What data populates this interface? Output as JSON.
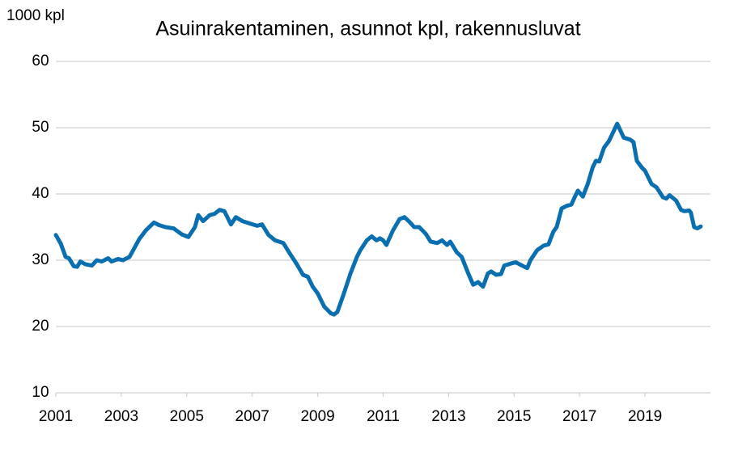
{
  "chart_data": {
    "type": "line",
    "title": "Asuinrakentaminen, asunnot kpl, rakennusluvat",
    "y_label": "1000 kpl",
    "xlim": [
      2001,
      2021
    ],
    "xticks": [
      2001,
      2003,
      2005,
      2007,
      2009,
      2011,
      2013,
      2015,
      2017,
      2019
    ],
    "ylim": [
      10,
      60
    ],
    "yticks": [
      10,
      20,
      30,
      40,
      50,
      60
    ],
    "grid": true,
    "series": [
      {
        "name": "Rakennusluvat",
        "color": "#0a6fb0",
        "x": [
          2001.0,
          2001.15,
          2001.3,
          2001.4,
          2001.55,
          2001.65,
          2001.75,
          2001.9,
          2002.1,
          2002.25,
          2002.4,
          2002.6,
          2002.7,
          2002.9,
          2003.05,
          2003.25,
          2003.55,
          2003.75,
          2004.0,
          2004.15,
          2004.35,
          2004.6,
          2004.85,
          2005.05,
          2005.25,
          2005.35,
          2005.5,
          2005.7,
          2005.85,
          2006.0,
          2006.15,
          2006.35,
          2006.5,
          2006.7,
          2006.95,
          2007.15,
          2007.3,
          2007.5,
          2007.7,
          2007.95,
          2008.15,
          2008.35,
          2008.55,
          2008.7,
          2008.85,
          2009.0,
          2009.2,
          2009.4,
          2009.5,
          2009.6,
          2009.8,
          2010.0,
          2010.2,
          2010.3,
          2010.5,
          2010.65,
          2010.8,
          2010.9,
          2011.0,
          2011.1,
          2011.3,
          2011.5,
          2011.65,
          2011.8,
          2011.95,
          2012.1,
          2012.3,
          2012.45,
          2012.65,
          2012.8,
          2012.95,
          2013.05,
          2013.25,
          2013.4,
          2013.6,
          2013.75,
          2013.9,
          2014.05,
          2014.2,
          2014.3,
          2014.45,
          2014.6,
          2014.7,
          2014.9,
          2015.05,
          2015.2,
          2015.4,
          2015.5,
          2015.7,
          2015.9,
          2016.05,
          2016.2,
          2016.3,
          2016.45,
          2016.6,
          2016.75,
          2016.85,
          2016.95,
          2017.1,
          2017.25,
          2017.4,
          2017.5,
          2017.6,
          2017.75,
          2017.9,
          2018.15,
          2018.35,
          2018.55,
          2018.65,
          2018.75,
          2018.9,
          2019.0,
          2019.2,
          2019.35,
          2019.55,
          2019.65,
          2019.75,
          2019.95,
          2020.1,
          2020.2,
          2020.35,
          2020.4,
          2020.5,
          2020.6,
          2020.7
        ],
        "values": [
          33.8,
          32.5,
          30.5,
          30.3,
          29.1,
          29.0,
          29.8,
          29.4,
          29.2,
          30.0,
          29.8,
          30.3,
          29.8,
          30.2,
          30.0,
          30.5,
          33.2,
          34.5,
          35.7,
          35.3,
          35.0,
          34.8,
          33.9,
          33.5,
          35.0,
          36.8,
          35.9,
          36.8,
          37.0,
          37.6,
          37.4,
          35.4,
          36.5,
          35.9,
          35.5,
          35.2,
          35.4,
          33.8,
          33.0,
          32.6,
          31.0,
          29.5,
          27.8,
          27.5,
          26.0,
          25.0,
          23.0,
          22.0,
          21.8,
          22.2,
          25.0,
          28.0,
          30.5,
          31.5,
          33.0,
          33.6,
          33.0,
          33.3,
          33.0,
          32.3,
          34.5,
          36.2,
          36.5,
          35.8,
          35.0,
          35.0,
          34.0,
          32.8,
          32.6,
          33.0,
          32.3,
          32.8,
          31.2,
          30.5,
          28.0,
          26.3,
          26.7,
          26.0,
          28.0,
          28.3,
          27.8,
          27.9,
          29.2,
          29.5,
          29.7,
          29.3,
          28.8,
          30.0,
          31.5,
          32.2,
          32.4,
          34.3,
          35.0,
          37.8,
          38.2,
          38.4,
          39.5,
          40.5,
          39.6,
          41.5,
          44.0,
          45.0,
          44.9,
          47.0,
          48.0,
          50.6,
          48.5,
          48.2,
          47.8,
          45.0,
          44.0,
          43.5,
          41.5,
          41.0,
          39.5,
          39.3,
          39.8,
          39.0,
          37.6,
          37.4,
          37.5,
          37.2,
          35.0,
          34.8,
          35.1
        ]
      }
    ]
  }
}
